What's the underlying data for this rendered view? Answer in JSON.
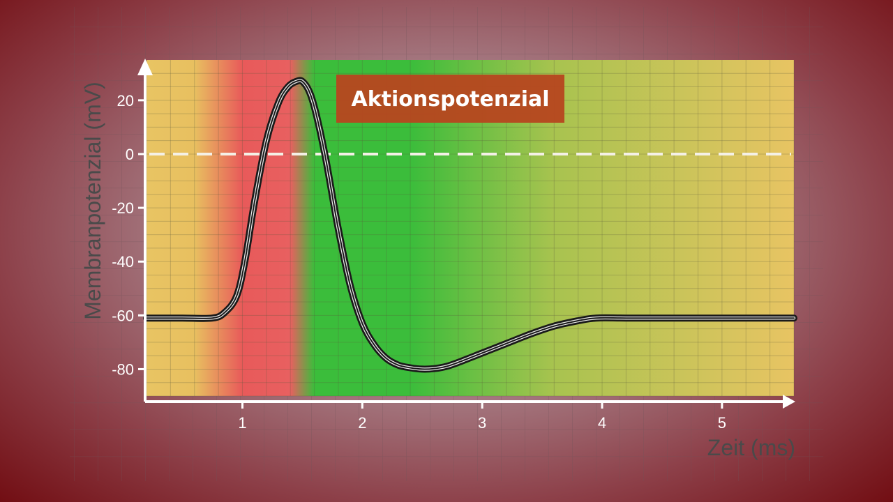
{
  "chart_data": {
    "type": "line",
    "title": "Aktionspotenzial",
    "xlabel": "Zeit (ms)",
    "ylabel": "Membranpotenzial (mV)",
    "xlim": [
      0.2,
      5.6
    ],
    "ylim": [
      -90,
      35
    ],
    "x_ticks": [
      1,
      2,
      3,
      4,
      5
    ],
    "x_tick_labels": [
      "1",
      "2",
      "3",
      "4",
      "5"
    ],
    "y_ticks": [
      20,
      0,
      -20,
      -40,
      -60,
      -80
    ],
    "y_tick_labels": [
      "20",
      "0",
      "-20",
      "-40",
      "-60",
      "-80"
    ],
    "reference_line": {
      "y": 0,
      "style": "dashed",
      "color": "#ffffff"
    },
    "grid": true,
    "legend": "none",
    "background_bands": [
      {
        "x": 0.2,
        "color": "#e8c463"
      },
      {
        "x": 0.6,
        "color": "#e8c060"
      },
      {
        "x": 1.0,
        "color": "#e85a5a"
      },
      {
        "x": 1.4,
        "color": "#e86060"
      },
      {
        "x": 1.6,
        "color": "#3bbd3b"
      },
      {
        "x": 2.4,
        "color": "#3bbd3b"
      },
      {
        "x": 3.6,
        "color": "#a8c34f"
      },
      {
        "x": 5.6,
        "color": "#e8c463"
      }
    ],
    "series": [
      {
        "color": "#111111",
        "x": [
          0.2,
          0.5,
          0.75,
          0.85,
          0.95,
          1.02,
          1.1,
          1.2,
          1.3,
          1.38,
          1.45,
          1.5,
          1.56,
          1.62,
          1.7,
          1.8,
          1.9,
          2.0,
          2.1,
          2.2,
          2.3,
          2.4,
          2.5,
          2.6,
          2.7,
          2.8,
          3.0,
          3.2,
          3.4,
          3.6,
          3.8,
          3.95,
          4.2,
          4.6,
          5.0,
          5.6
        ],
        "y": [
          -61,
          -61,
          -61,
          -59,
          -53,
          -40,
          -18,
          5,
          19,
          25,
          27,
          27,
          23,
          14,
          -3,
          -28,
          -49,
          -63,
          -71,
          -76,
          -78.5,
          -79.5,
          -80,
          -79.8,
          -79,
          -77.5,
          -74,
          -70.5,
          -67,
          -64,
          -62,
          -61,
          -61,
          -61,
          -61,
          -61
        ]
      }
    ]
  }
}
